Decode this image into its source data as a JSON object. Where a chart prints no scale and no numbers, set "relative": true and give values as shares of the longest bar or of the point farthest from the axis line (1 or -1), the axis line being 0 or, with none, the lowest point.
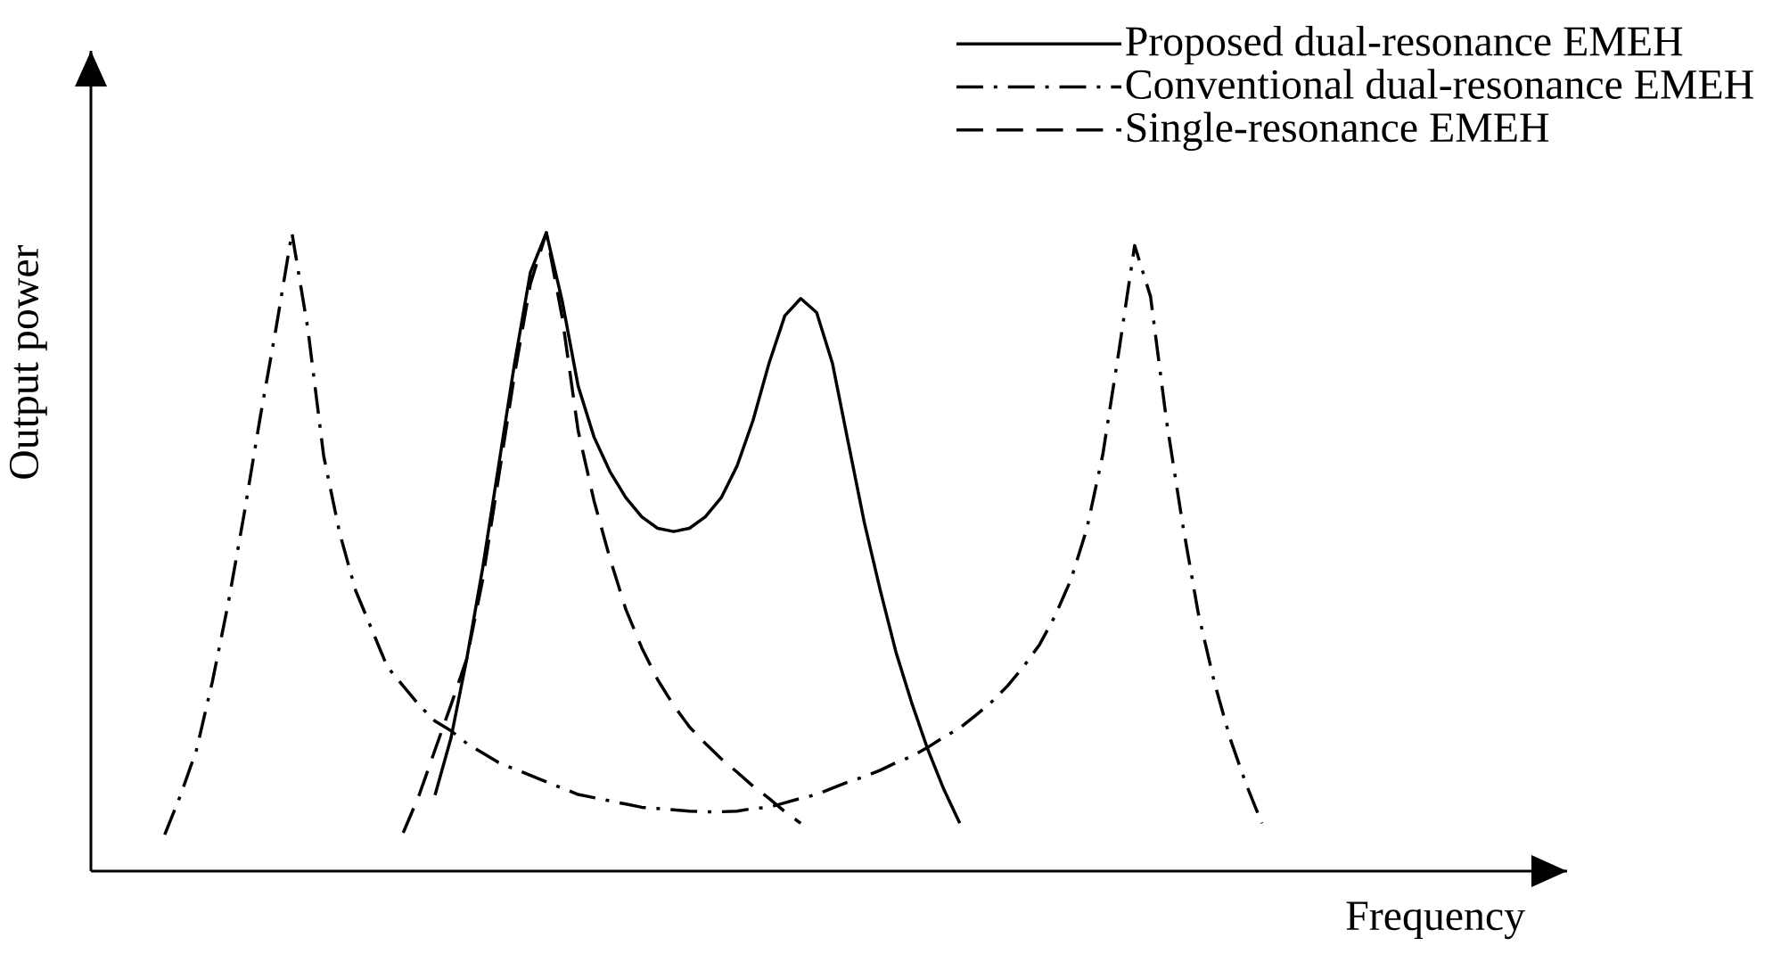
{
  "chart_data": {
    "type": "line",
    "relative": true,
    "xlabel": "Frequency",
    "ylabel": "Output power",
    "legend": "top right",
    "categories": [
      null,
      null,
      null,
      null,
      null,
      null,
      null,
      null,
      null,
      null,
      null,
      null,
      null,
      null,
      null,
      null,
      null,
      null,
      null,
      null,
      null,
      null,
      null,
      null,
      null,
      null,
      null,
      null,
      null,
      null,
      null,
      null,
      null,
      null,
      null,
      null,
      null,
      null,
      null,
      null,
      null,
      null,
      null,
      null,
      null,
      null,
      null,
      null,
      null,
      null,
      null,
      null,
      null,
      null,
      null,
      null,
      null,
      null,
      null,
      null,
      null,
      null,
      null,
      null,
      null,
      null,
      null,
      null,
      null,
      null,
      null
    ],
    "series": [
      {
        "name": "Proposed dual-resonance EMEH",
        "color": "#000000",
        "line_style": "solid",
        "values": [
          null,
          null,
          null,
          null,
          null,
          null,
          null,
          null,
          null,
          null,
          null,
          null,
          null,
          null,
          null,
          null,
          null,
          0.119,
          0.208,
          0.333,
          0.475,
          0.635,
          0.795,
          0.938,
          1.0,
          0.893,
          0.76,
          0.68,
          0.626,
          0.585,
          0.555,
          0.537,
          0.532,
          0.537,
          0.555,
          0.585,
          0.635,
          0.706,
          0.795,
          0.87,
          0.897,
          0.875,
          0.795,
          0.67,
          0.546,
          0.44,
          0.342,
          0.262,
          0.19,
          0.128,
          0.075,
          null,
          null,
          null,
          null,
          null,
          null,
          null,
          null,
          null,
          null,
          null,
          null,
          null,
          null,
          null,
          null,
          null,
          null,
          null,
          null
        ]
      },
      {
        "name": "Conventional dual-resonance EMEH",
        "color": "#000000",
        "line_style": "dashdot",
        "values": [
          0.057,
          0.119,
          0.19,
          0.297,
          0.42,
          0.56,
          0.71,
          0.85,
          1.0,
          0.85,
          0.65,
          0.53,
          0.44,
          0.38,
          0.32,
          0.29,
          0.26,
          0.235,
          0.22,
          0.2,
          0.185,
          0.17,
          0.16,
          0.15,
          0.14,
          0.13,
          0.12,
          0.115,
          0.11,
          0.105,
          0.1,
          0.098,
          0.096,
          0.094,
          0.093,
          0.093,
          0.094,
          0.098,
          0.1,
          0.107,
          0.114,
          0.12,
          0.13,
          0.14,
          0.148,
          0.158,
          0.17,
          0.18,
          0.194,
          0.21,
          0.224,
          0.244,
          0.265,
          0.29,
          0.32,
          0.354,
          0.4,
          0.457,
          0.537,
          0.653,
          0.813,
          0.98,
          0.9,
          0.706,
          0.546,
          0.404,
          0.297,
          0.208,
          0.137,
          0.075,
          null
        ]
      },
      {
        "name": "Single-resonance EMEH",
        "color": "#000000",
        "line_style": "dashed",
        "values": [
          null,
          null,
          null,
          null,
          null,
          null,
          null,
          null,
          null,
          null,
          null,
          null,
          null,
          null,
          null,
          0.06,
          0.119,
          0.19,
          0.26,
          0.333,
          0.457,
          0.617,
          0.778,
          0.92,
          1.0,
          0.867,
          0.69,
          0.58,
          0.49,
          0.41,
          0.35,
          0.3,
          0.26,
          0.226,
          0.2,
          0.176,
          0.155,
          0.133,
          0.114,
          0.093,
          0.075,
          null,
          null,
          null,
          null,
          null,
          null,
          null,
          null,
          null,
          null,
          null,
          null,
          null,
          null,
          null,
          null,
          null,
          null,
          null,
          null,
          null,
          null,
          null,
          null,
          null,
          null,
          null,
          null,
          null,
          null
        ]
      }
    ]
  }
}
